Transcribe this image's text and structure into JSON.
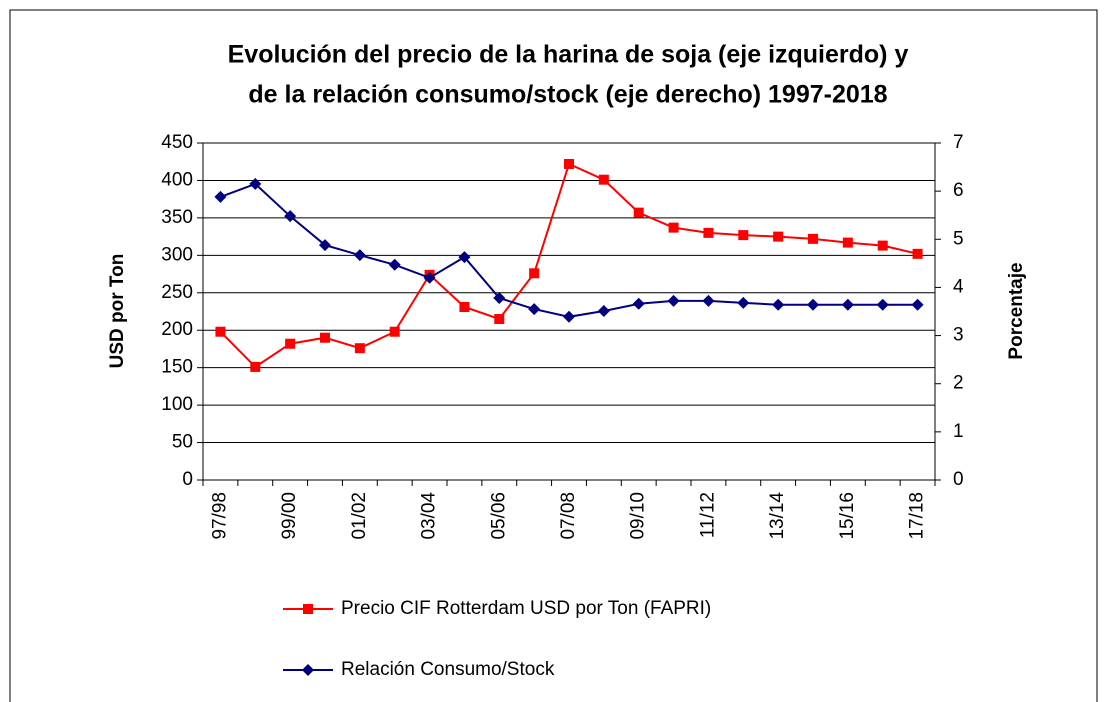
{
  "chart_data": {
    "type": "line",
    "title": "Evolución del precio de la harina de soja (eje izquierdo) y",
    "subtitle": "de la relación consumo/stock (eje derecho) 1997-2018",
    "y_label": "USD por Ton",
    "y2_label": "Porcentaje",
    "categories": [
      "97/98",
      null,
      "99/00",
      null,
      "01/02",
      null,
      "03/04",
      null,
      "05/06",
      null,
      "07/08",
      null,
      "09/10",
      null,
      "11/12",
      null,
      "13/14",
      null,
      "15/16",
      null,
      "17/18"
    ],
    "series": [
      {
        "name": "Precio CIF Rotterdam USD por Ton (FAPRI)",
        "color": "#ff0000",
        "marker": "square",
        "values": [
          198,
          151,
          182,
          190,
          176,
          198,
          274,
          231,
          215,
          276,
          422,
          401,
          357,
          337,
          330,
          327,
          325,
          322,
          317,
          313,
          302
        ]
      },
      {
        "name": "Relación Consumo/Stock",
        "color": "#000080",
        "marker": "diamond",
        "axis": "y2",
        "values": [
          5.88,
          6.15,
          5.48,
          4.88,
          4.67,
          4.47,
          4.2,
          4.63,
          3.78,
          3.55,
          3.39,
          3.51,
          3.66,
          3.72,
          3.72,
          3.68,
          3.64,
          3.64,
          3.64,
          3.64,
          3.64
        ]
      }
    ],
    "ylim": [
      0,
      450
    ],
    "yticks": [
      0,
      50,
      100,
      150,
      200,
      250,
      300,
      350,
      400,
      450
    ],
    "y2lim": [
      0,
      7
    ],
    "y2ticks": [
      0,
      1,
      2,
      3,
      4,
      5,
      6,
      7
    ],
    "grid": true,
    "legend": "bottom"
  }
}
